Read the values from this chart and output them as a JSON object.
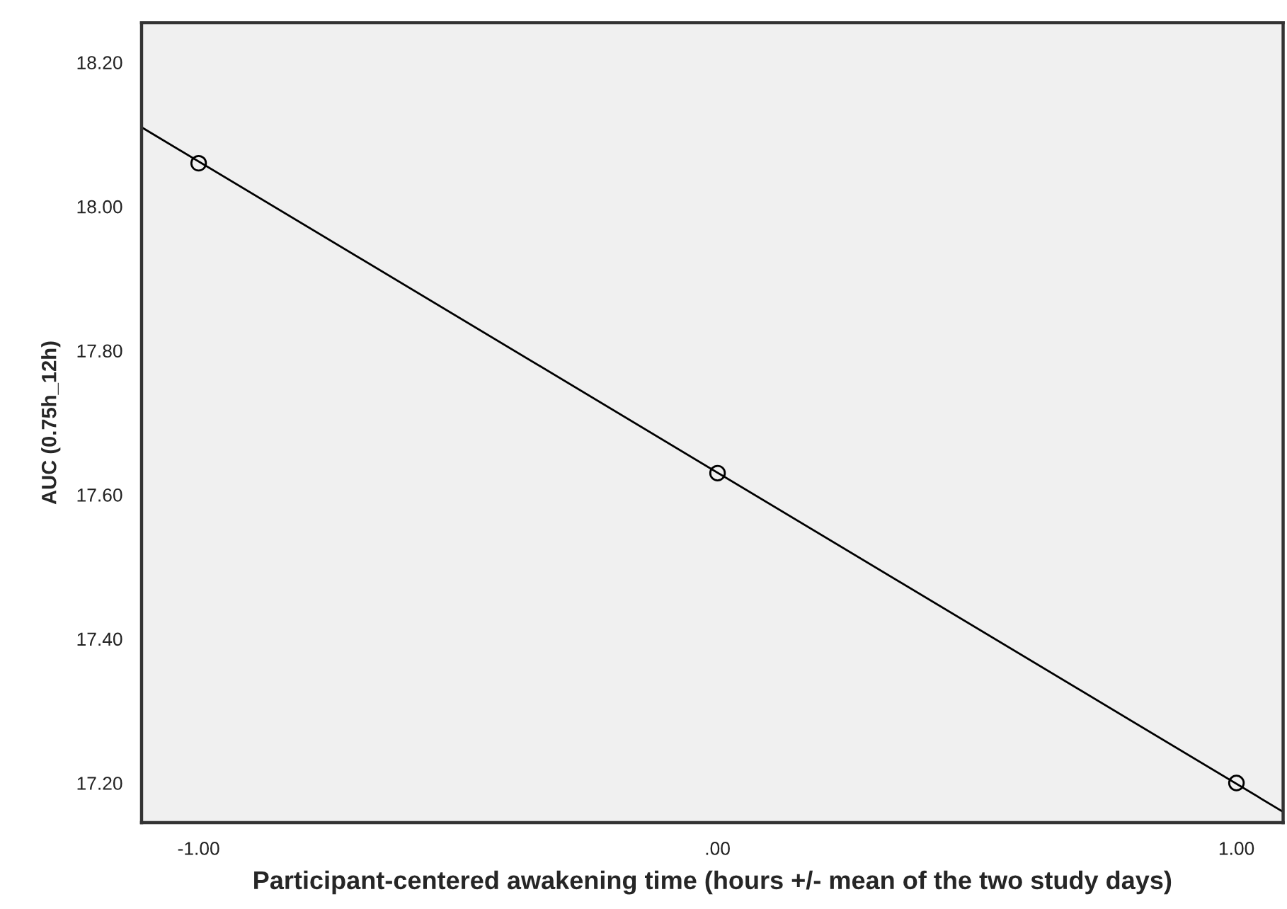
{
  "chart_data": {
    "type": "scatter",
    "xlabel": "Participant-centered awakening time (hours +/- mean of the two study days)",
    "ylabel": "AUC (0.75h_12h)",
    "series": [
      {
        "x": [
          -1,
          0,
          1
        ],
        "values": [
          18.06,
          17.63,
          17.2
        ],
        "color": "#000000",
        "marker": "circle"
      },
      {
        "type": "line",
        "x": [
          -1.11,
          1.09
        ],
        "values": [
          18.11,
          17.16
        ],
        "color": "#000000",
        "marker": "none",
        "line_style": "solid"
      }
    ],
    "xlim": [
      -1.11,
      1.09
    ],
    "xticks": [
      {
        "value": -1,
        "label": "-1.00"
      },
      {
        "value": 0,
        "label": ".00"
      },
      {
        "value": 1,
        "label": "1.00"
      }
    ],
    "ylim": [
      17.145,
      18.255
    ],
    "yticks": [
      {
        "value": 17.2,
        "label": "17.20"
      },
      {
        "value": 17.4,
        "label": "17.40"
      },
      {
        "value": 17.6,
        "label": "17.60"
      },
      {
        "value": 17.8,
        "label": "17.80"
      },
      {
        "value": 18.0,
        "label": "18.00"
      },
      {
        "value": 18.2,
        "label": "18.20"
      }
    ],
    "grid": false
  }
}
